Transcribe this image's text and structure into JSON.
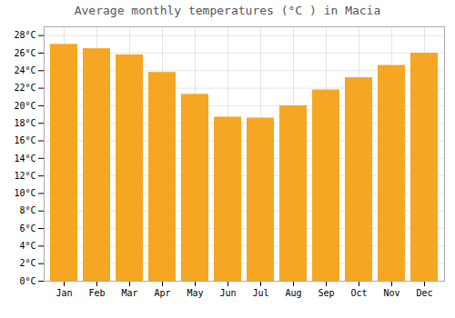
{
  "chart_data": {
    "type": "bar",
    "title": "Average monthly temperatures (°C ) in Macia",
    "categories": [
      "Jan",
      "Feb",
      "Mar",
      "Apr",
      "May",
      "Jun",
      "Jul",
      "Aug",
      "Sep",
      "Oct",
      "Nov",
      "Dec"
    ],
    "values": [
      27.0,
      26.5,
      25.8,
      23.8,
      21.3,
      18.7,
      18.6,
      20.0,
      21.8,
      23.2,
      24.6,
      26.0
    ],
    "color": "#F5A623",
    "ylim": [
      0,
      29
    ],
    "yticks": [
      {
        "value": 0,
        "label": "0°C"
      },
      {
        "value": 2,
        "label": "2°C"
      },
      {
        "value": 4,
        "label": "4°C"
      },
      {
        "value": 6,
        "label": "6°C"
      },
      {
        "value": 8,
        "label": "8°C"
      },
      {
        "value": 10,
        "label": "10°C"
      },
      {
        "value": 12,
        "label": "12°C"
      },
      {
        "value": 14,
        "label": "14°C"
      },
      {
        "value": 16,
        "label": "16°C"
      },
      {
        "value": 18,
        "label": "18°C"
      },
      {
        "value": 20,
        "label": "20°C"
      },
      {
        "value": 22,
        "label": "22°C"
      },
      {
        "value": 24,
        "label": "24°C"
      },
      {
        "value": 26,
        "label": "26°C"
      },
      {
        "value": 28,
        "label": "28°C"
      }
    ],
    "grid": true
  }
}
